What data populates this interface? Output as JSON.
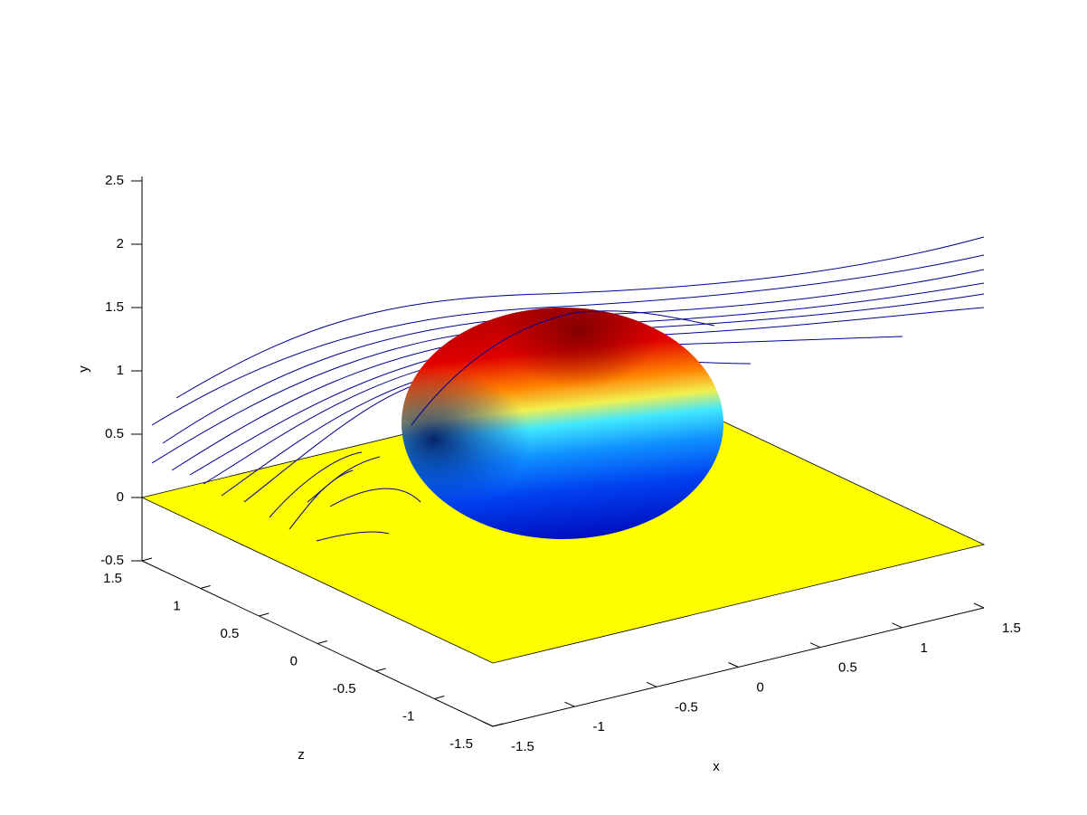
{
  "chart_data": {
    "type": "surface3d",
    "xlabel": "x",
    "ylabel": "y",
    "zlabel": "z",
    "xlim": [
      -1.5,
      1.5
    ],
    "ylim": [
      -0.5,
      2.5
    ],
    "zlim": [
      -1.5,
      1.5
    ],
    "xticks": [
      -1.5,
      -1,
      -0.5,
      0,
      0.5,
      1,
      1.5
    ],
    "yticks": [
      -0.5,
      0,
      0.5,
      1,
      1.5,
      2,
      2.5
    ],
    "zticks": [
      -1.5,
      -1,
      -0.5,
      0,
      0.5,
      1,
      1.5
    ],
    "grid": false
  }
}
